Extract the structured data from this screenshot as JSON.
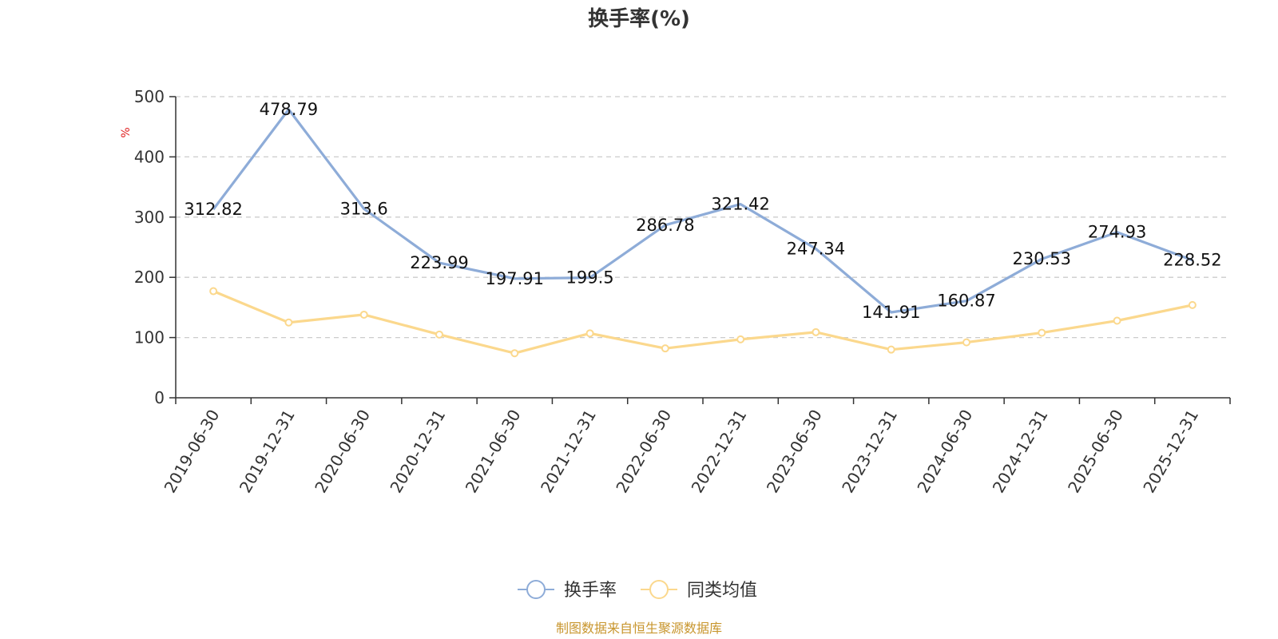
{
  "chart_data": {
    "type": "line",
    "title": "换手率(%)",
    "ylabel": "%",
    "xlabel": "",
    "ylim": [
      0,
      500
    ],
    "yticks": [
      0,
      100,
      200,
      300,
      400,
      500
    ],
    "grid": "horizontal-dashed",
    "legend_position": "bottom-center",
    "categories": [
      "2019-06-30",
      "2019-12-31",
      "2020-06-30",
      "2020-12-31",
      "2021-06-30",
      "2021-12-31",
      "2022-06-30",
      "2022-12-31",
      "2023-06-30",
      "2023-12-31",
      "2024-06-30",
      "2024-12-31",
      "2025-06-30",
      "2025-12-31"
    ],
    "series": [
      {
        "name": "换手率",
        "color": "#8eacd8",
        "show_labels": true,
        "show_markers": false,
        "values": [
          312.82,
          478.79,
          313.6,
          223.99,
          197.91,
          199.5,
          286.78,
          321.42,
          247.34,
          141.91,
          160.87,
          230.53,
          274.93,
          228.52
        ]
      },
      {
        "name": "同类均值",
        "color": "#fbd88d",
        "show_labels": false,
        "show_markers": true,
        "values": [
          177,
          125,
          138,
          105,
          74,
          107,
          82,
          97,
          109,
          80,
          92,
          108,
          128,
          154
        ]
      }
    ]
  },
  "source_note": "制图数据来自恒生聚源数据库",
  "colors": {
    "axis": "#333333",
    "grid": "#cccccc",
    "unit_label": "#e02020",
    "source_note": "#c8962e"
  }
}
